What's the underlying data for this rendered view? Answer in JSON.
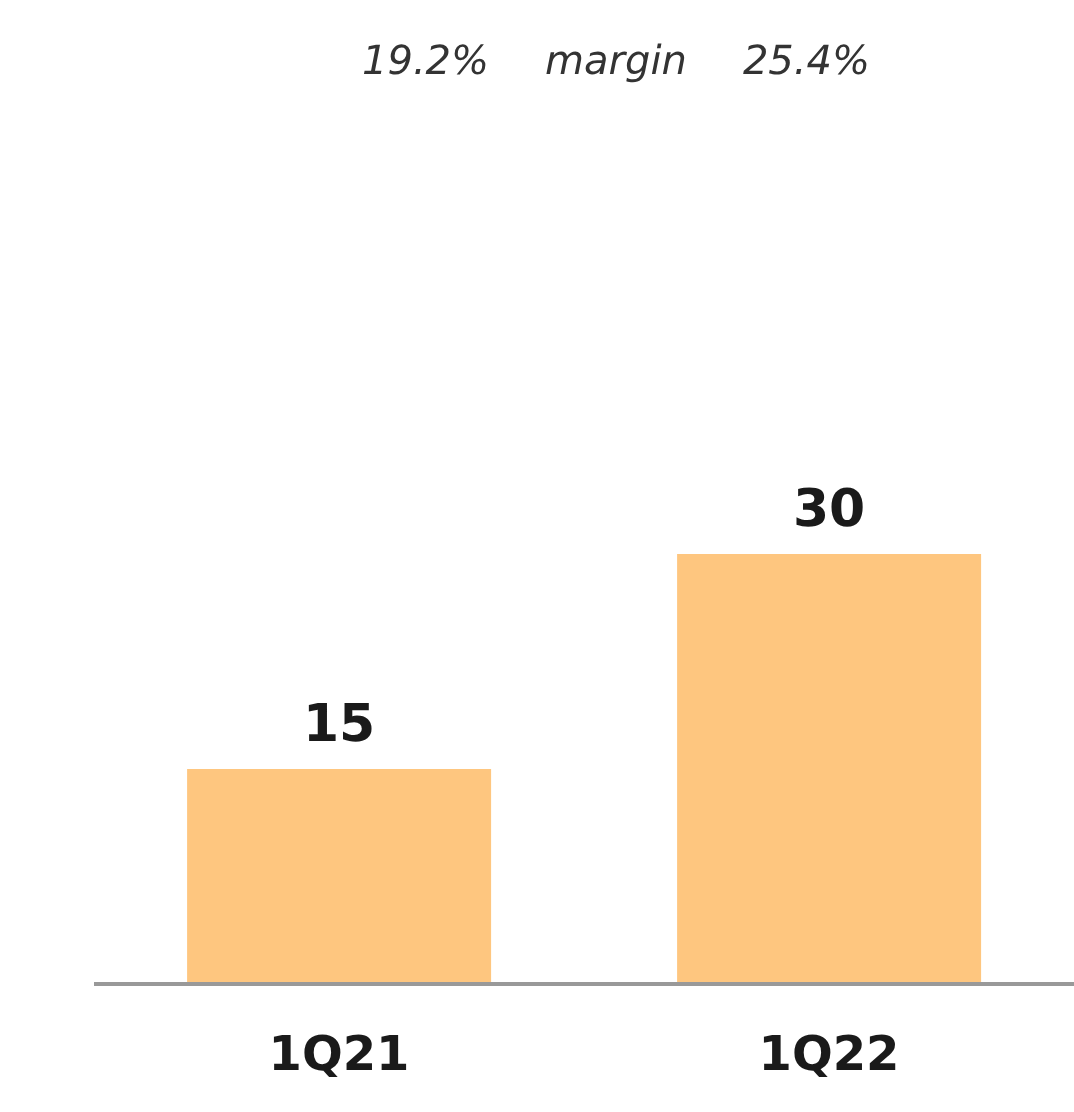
{
  "chart_data": {
    "type": "bar",
    "categories": [
      "1Q21",
      "1Q22"
    ],
    "values": [
      15,
      30
    ],
    "color": "#fec67f",
    "data_labels": true,
    "annotations": [
      "19.2%",
      "margin",
      "25.4%"
    ]
  }
}
